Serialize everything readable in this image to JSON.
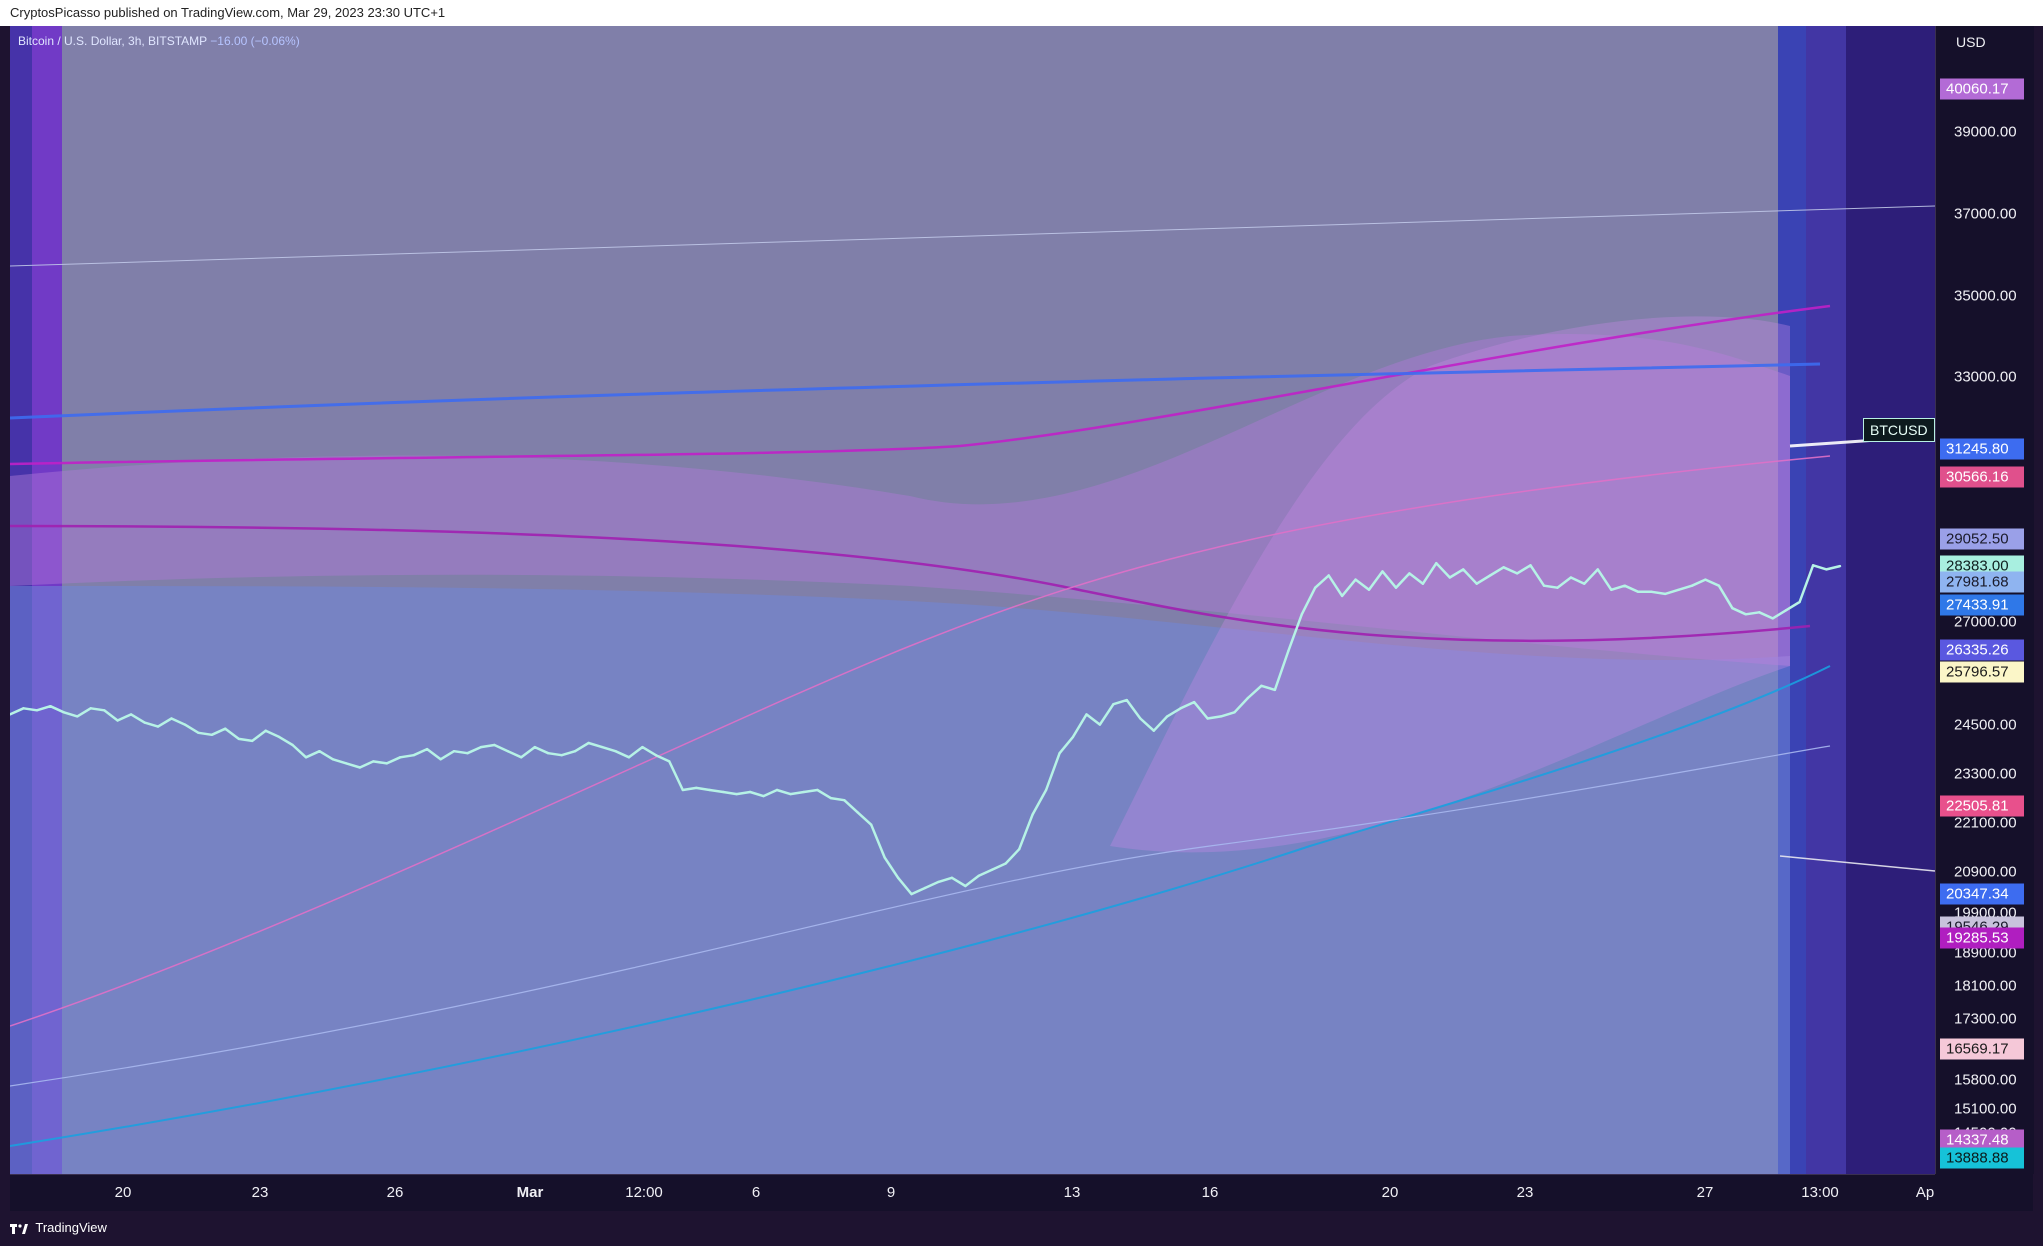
{
  "header": {
    "publisher_line": "CryptosPicasso published on TradingView.com, Mar 29, 2023 23:30 UTC+1"
  },
  "legend": {
    "symbol_line": "Bitcoin / U.S. Dollar, 3h, BITSTAMP",
    "change": "−16.00 (−0.06%)"
  },
  "symbol_label": "BTCUSD",
  "footer": {
    "brand": "TradingView",
    "logo_icon": "tradingview-logo-icon"
  },
  "chart_data": {
    "type": "line",
    "symbol": "BTCUSD",
    "exchange": "BITSTAMP",
    "interval": "3h",
    "currency": "USD",
    "ylim": [
      13500,
      41600
    ],
    "grid": false,
    "x_tick_labels": [
      {
        "label": "20",
        "bold": false
      },
      {
        "label": "23",
        "bold": false
      },
      {
        "label": "26",
        "bold": false
      },
      {
        "label": "Mar",
        "bold": true
      },
      {
        "label": "12:00",
        "bold": false
      },
      {
        "label": "6",
        "bold": false
      },
      {
        "label": "9",
        "bold": false
      },
      {
        "label": "13",
        "bold": false
      },
      {
        "label": "16",
        "bold": false
      },
      {
        "label": "20",
        "bold": false
      },
      {
        "label": "23",
        "bold": false
      },
      {
        "label": "27",
        "bold": false
      },
      {
        "label": "13:00",
        "bold": false
      },
      {
        "label": "Ap",
        "bold": false
      }
    ],
    "y_ticks": [
      "39000.00",
      "37000.00",
      "35000.00",
      "33000.00",
      "27000.00",
      "24500.00",
      "23300.00",
      "22100.00",
      "20900.00",
      "19900.00",
      "18900.00",
      "18100.00",
      "17300.00",
      "15800.00",
      "15100.00",
      "14500.00"
    ],
    "price_tags": [
      {
        "label": "40060.17",
        "value": 40060.17,
        "bg": "#b36bd6",
        "fg": "#ffffff"
      },
      {
        "label": "31245.80",
        "value": 31245.8,
        "bg": "#3d6cf0",
        "fg": "#ffffff"
      },
      {
        "label": "30566.16",
        "value": 30566.16,
        "bg": "#e0508c",
        "fg": "#ffffff"
      },
      {
        "label": "29052.50",
        "value": 29052.5,
        "bg": "#9aa0e8",
        "fg": "#1a1a2a"
      },
      {
        "label": "28383.00",
        "value": 28383.0,
        "bg": "#a8efe0",
        "fg": "#102020"
      },
      {
        "label": "27981.68",
        "value": 27981.68,
        "bg": "#8fb4f0",
        "fg": "#1a1a2a"
      },
      {
        "label": "27433.91",
        "value": 27433.91,
        "bg": "#2f78e8",
        "fg": "#ffffff"
      },
      {
        "label": "26335.26",
        "value": 26335.26,
        "bg": "#5a58e0",
        "fg": "#ffffff"
      },
      {
        "label": "25796.57",
        "value": 25796.57,
        "bg": "#fbf6c8",
        "fg": "#1a1a1a"
      },
      {
        "label": "22505.81",
        "value": 22505.81,
        "bg": "#e8508c",
        "fg": "#ffffff"
      },
      {
        "label": "20347.34",
        "value": 20347.34,
        "bg": "#3d6cf0",
        "fg": "#ffffff"
      },
      {
        "label": "19546.29",
        "value": 19546.29,
        "bg": "#c8c2dc",
        "fg": "#1a1a2a"
      },
      {
        "label": "19285.53",
        "value": 19285.53,
        "bg": "#b01ec0",
        "fg": "#ffffff"
      },
      {
        "label": "16569.17",
        "value": 16569.17,
        "bg": "#f5c8d8",
        "fg": "#1a1a1a"
      },
      {
        "label": "14337.48",
        "value": 14337.48,
        "bg": "#b65ec8",
        "fg": "#ffffff"
      },
      {
        "label": "13888.88",
        "value": 13888.88,
        "bg": "#16c2d8",
        "fg": "#0a1a1a"
      }
    ],
    "series": [
      {
        "name": "BTCUSD",
        "color": "#b6f2e6",
        "values": [
          24750,
          24900,
          24850,
          24950,
          24800,
          24700,
          24900,
          24850,
          24600,
          24750,
          24550,
          24450,
          24650,
          24500,
          24300,
          24250,
          24400,
          24150,
          24100,
          24350,
          24200,
          24000,
          23700,
          23850,
          23650,
          23550,
          23450,
          23600,
          23550,
          23700,
          23750,
          23900,
          23650,
          23850,
          23800,
          23950,
          24000,
          23850,
          23700,
          23950,
          23800,
          23750,
          23850,
          24050,
          23950,
          23850,
          23700,
          23950,
          23750,
          23600,
          22900,
          22950,
          22900,
          22850,
          22800,
          22850,
          22750,
          22900,
          22800,
          22850,
          22900,
          22700,
          22650,
          22350,
          22050,
          21250,
          20750,
          20350,
          20500,
          20650,
          20750,
          20550,
          20800,
          20950,
          21100,
          21450,
          22300,
          22900,
          23800,
          24200,
          24750,
          24500,
          25000,
          25100,
          24650,
          24350,
          24700,
          24900,
          25050,
          24650,
          24700,
          24800,
          25150,
          25450,
          25350,
          26300,
          27200,
          27850,
          28150,
          27650,
          28050,
          27800,
          28250,
          27850,
          28200,
          27950,
          28450,
          28100,
          28300,
          27950,
          28150,
          28350,
          28200,
          28400,
          27900,
          27850,
          28100,
          27950,
          28300,
          27800,
          27900,
          27750,
          27750,
          27700,
          27800,
          27900,
          28050,
          27900,
          27350,
          27200,
          27250,
          27100,
          27300,
          27500,
          28400,
          28300,
          28380
        ]
      }
    ]
  }
}
